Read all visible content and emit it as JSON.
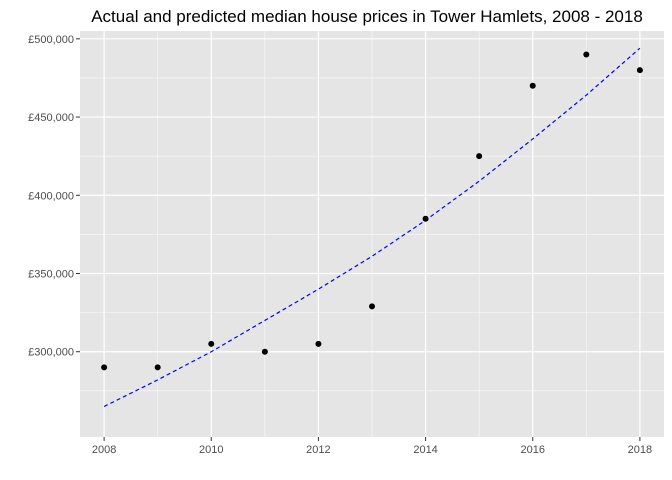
{
  "chart_data": {
    "type": "scatter",
    "title": "Actual and predicted median house prices in Tower Hamlets, 2008 - 2018",
    "xlabel": "",
    "ylabel": "",
    "xlim": [
      2007.55,
      2018.45
    ],
    "ylim": [
      245500,
      505000
    ],
    "x_ticks": [
      2008,
      2010,
      2012,
      2014,
      2016,
      2018
    ],
    "x_tick_labels": [
      "2008",
      "2010",
      "2012",
      "2014",
      "2016",
      "2018"
    ],
    "y_ticks": [
      300000,
      350000,
      400000,
      450000,
      500000
    ],
    "y_tick_labels": [
      "£300,000",
      "£350,000",
      "£400,000",
      "£450,000",
      "£500,000"
    ],
    "grid": true,
    "legend": "none",
    "series": [
      {
        "kind": "points",
        "color": "#000000",
        "x": [
          2008,
          2009,
          2010,
          2011,
          2012,
          2013,
          2014,
          2015,
          2016,
          2017,
          2018
        ],
        "y": [
          290000,
          290000,
          305000,
          300000,
          305000,
          329000,
          385000,
          425000,
          470000,
          490000,
          480000
        ]
      },
      {
        "kind": "line",
        "style": "dashed",
        "color": "#0000ff",
        "x": [
          2008,
          2009,
          2010,
          2011,
          2012,
          2013,
          2014,
          2015,
          2016,
          2017,
          2018
        ],
        "y": [
          265000,
          282000,
          300000,
          320000,
          340000,
          361000,
          384000,
          409000,
          436000,
          464000,
          494000
        ]
      }
    ]
  },
  "colors": {
    "panel_background": "#e5e5e5",
    "grid_major": "#ffffff",
    "points": "#000000",
    "prediction_line": "#0000ff"
  }
}
